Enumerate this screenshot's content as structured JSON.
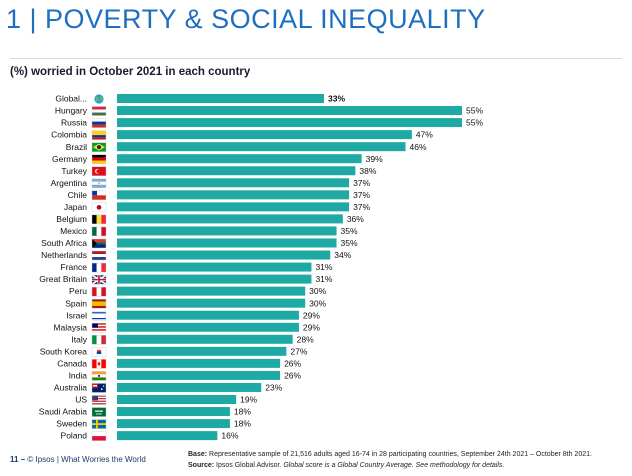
{
  "header": {
    "title": "1 | POVERTY & SOCIAL INEQUALITY",
    "subtitle": "(%) worried in October 2021 in each country"
  },
  "footer": {
    "page_number": "11",
    "page_separator": "–",
    "brand": "© Ipsos | What Worries the World",
    "base_label": "Base:",
    "base_text": "Representative sample of 21,516 adults aged 16-74 in 28 participating countries, September 24th 2021 – October 8th 2021.",
    "source_label": "Source:",
    "source_text": "Ipsos Global Advisor.",
    "source_note": "Global score is a Global Country Average. See methodology for details."
  },
  "colors": {
    "bar": "#1fa9a4",
    "title": "#1f6fc1"
  },
  "chart_data": {
    "type": "bar",
    "orientation": "horizontal",
    "title": "(%) worried in October 2021 in each country",
    "xlabel": "",
    "ylabel": "",
    "xlim": [
      0,
      55
    ],
    "grid": false,
    "value_suffix": "%",
    "categories": [
      "Global...",
      "Hungary",
      "Russia",
      "Colombia",
      "Brazil",
      "Germany",
      "Turkey",
      "Argentina",
      "Chile",
      "Japan",
      "Belgium",
      "Mexico",
      "South Africa",
      "Netherlands",
      "France",
      "Great Britain",
      "Peru",
      "Spain",
      "Israel",
      "Malaysia",
      "Italy",
      "South Korea",
      "Canada",
      "India",
      "Australia",
      "US",
      "Saudi Arabia",
      "Sweden",
      "Poland"
    ],
    "values": [
      33,
      55,
      55,
      47,
      46,
      39,
      38,
      37,
      37,
      37,
      36,
      35,
      35,
      34,
      31,
      31,
      30,
      30,
      29,
      29,
      28,
      27,
      26,
      26,
      23,
      19,
      18,
      18,
      16
    ],
    "icons": [
      "globe-icon",
      "hungary-flag-icon",
      "russia-flag-icon",
      "colombia-flag-icon",
      "brazil-flag-icon",
      "germany-flag-icon",
      "turkey-flag-icon",
      "argentina-flag-icon",
      "chile-flag-icon",
      "japan-flag-icon",
      "belgium-flag-icon",
      "mexico-flag-icon",
      "south-africa-flag-icon",
      "netherlands-flag-icon",
      "france-flag-icon",
      "great-britain-flag-icon",
      "peru-flag-icon",
      "spain-flag-icon",
      "israel-flag-icon",
      "malaysia-flag-icon",
      "italy-flag-icon",
      "south-korea-flag-icon",
      "canada-flag-icon",
      "india-flag-icon",
      "australia-flag-icon",
      "us-flag-icon",
      "saudi-arabia-flag-icon",
      "sweden-flag-icon",
      "poland-flag-icon"
    ],
    "highlight": "Global..."
  }
}
